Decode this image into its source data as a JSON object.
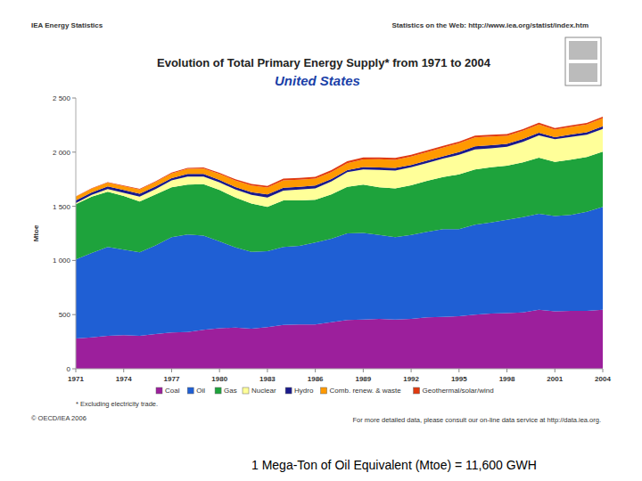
{
  "chart_data": {
    "type": "area",
    "stacked": true,
    "title": "Evolution of Total Primary Energy Supply* from 1971 to 2004",
    "subtitle": "United States",
    "y_label": "Mtoe",
    "annotations": [
      "IEA Energy Statistics",
      "Statistics on the Web: http://www.iea.org/statist/index.htm",
      "* Excluding electricity trade.",
      "© OECD/IEA 2006",
      "For more detailed data, please consult our on-line data service at http://data.iea.org.",
      "1 Mega-Ton of Oil Equivalent (Mtoe) = 11,600 GWH"
    ],
    "x": [
      1971,
      1972,
      1973,
      1974,
      1975,
      1976,
      1977,
      1978,
      1979,
      1980,
      1981,
      1982,
      1983,
      1984,
      1985,
      1986,
      1987,
      1988,
      1989,
      1990,
      1991,
      1992,
      1993,
      1994,
      1995,
      1996,
      1997,
      1998,
      1999,
      2000,
      2001,
      2002,
      2003,
      2004
    ],
    "xlim": [
      1971,
      2004
    ],
    "xticks": [
      1971,
      1974,
      1977,
      1980,
      1983,
      1986,
      1989,
      1992,
      1995,
      1998,
      2001,
      2004
    ],
    "ylim": [
      0,
      2500
    ],
    "yticks": [
      0,
      500,
      {
        "value": 1000,
        "label": "1 000"
      },
      {
        "value": 1500,
        "label": "1 500"
      },
      {
        "value": 2000,
        "label": "2 000"
      },
      {
        "value": 2500,
        "label": "2 500"
      }
    ],
    "grid": false,
    "legend": "bottom",
    "series": [
      {
        "name": "Coal",
        "color": "#9c1f9c",
        "values": [
          280,
          290,
          305,
          310,
          305,
          320,
          335,
          340,
          360,
          375,
          380,
          370,
          385,
          405,
          410,
          410,
          430,
          450,
          455,
          460,
          455,
          460,
          475,
          480,
          485,
          500,
          510,
          515,
          520,
          545,
          530,
          535,
          535,
          545
        ]
      },
      {
        "name": "Oil",
        "color": "#1f5fd4",
        "values": [
          730,
          780,
          820,
          790,
          770,
          820,
          880,
          900,
          870,
          800,
          740,
          710,
          700,
          720,
          725,
          755,
          770,
          800,
          800,
          775,
          760,
          775,
          790,
          810,
          805,
          830,
          840,
          860,
          880,
          885,
          880,
          885,
          915,
          950
        ]
      },
      {
        "name": "Gas",
        "color": "#1ea33c",
        "values": [
          510,
          520,
          510,
          495,
          470,
          470,
          460,
          460,
          475,
          475,
          460,
          445,
          410,
          430,
          420,
          395,
          410,
          430,
          445,
          440,
          450,
          460,
          470,
          480,
          505,
          510,
          510,
          500,
          505,
          520,
          500,
          510,
          505,
          510
        ]
      },
      {
        "name": "Nuclear",
        "color": "#ffff99",
        "values": [
          10,
          15,
          25,
          30,
          45,
          50,
          65,
          75,
          70,
          70,
          75,
          80,
          85,
          90,
          100,
          105,
          120,
          135,
          140,
          160,
          165,
          165,
          165,
          170,
          180,
          185,
          175,
          175,
          190,
          205,
          210,
          210,
          205,
          210
        ]
      },
      {
        "name": "Hydro",
        "color": "#1a1a8c",
        "values": [
          24,
          24,
          23,
          26,
          26,
          23,
          19,
          24,
          24,
          24,
          22,
          26,
          29,
          27,
          24,
          26,
          22,
          18,
          23,
          24,
          24,
          21,
          23,
          21,
          26,
          29,
          29,
          26,
          27,
          24,
          18,
          22,
          23,
          23
        ]
      },
      {
        "name": "Comb. renew. & waste",
        "color": "#ff9900",
        "values": [
          35,
          35,
          35,
          35,
          40,
          42,
          45,
          48,
          50,
          55,
          60,
          62,
          65,
          68,
          66,
          64,
          64,
          65,
          70,
          75,
          75,
          78,
          78,
          80,
          82,
          83,
          80,
          75,
          75,
          76,
          70,
          70,
          72,
          75
        ]
      },
      {
        "name": "Geothermal/solar/wind",
        "color": "#e03a10",
        "values": [
          2,
          3,
          4,
          5,
          6,
          7,
          7,
          8,
          9,
          11,
          12,
          13,
          14,
          15,
          16,
          17,
          18,
          18,
          18,
          17,
          17,
          17,
          16,
          16,
          15,
          16,
          16,
          16,
          16,
          16,
          14,
          15,
          15,
          15
        ]
      }
    ]
  }
}
